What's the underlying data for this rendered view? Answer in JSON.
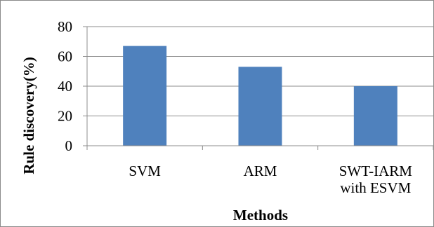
{
  "chart_data": {
    "type": "bar",
    "categories": [
      "SVM",
      "ARM",
      "SWT-IARM with ESVM"
    ],
    "category_lines": [
      [
        "SVM"
      ],
      [
        "ARM"
      ],
      [
        "SWT-IARM",
        "with ESVM"
      ]
    ],
    "values": [
      67,
      53,
      40
    ],
    "title": "",
    "xlabel": "Methods",
    "ylabel": "Rule discovery(%)",
    "ylim": [
      0,
      80
    ],
    "yticks": [
      0,
      20,
      40,
      60,
      80
    ],
    "grid": true,
    "legend": "none",
    "bar_color": "#4f81bd",
    "grid_color": "#8c8c8c"
  }
}
